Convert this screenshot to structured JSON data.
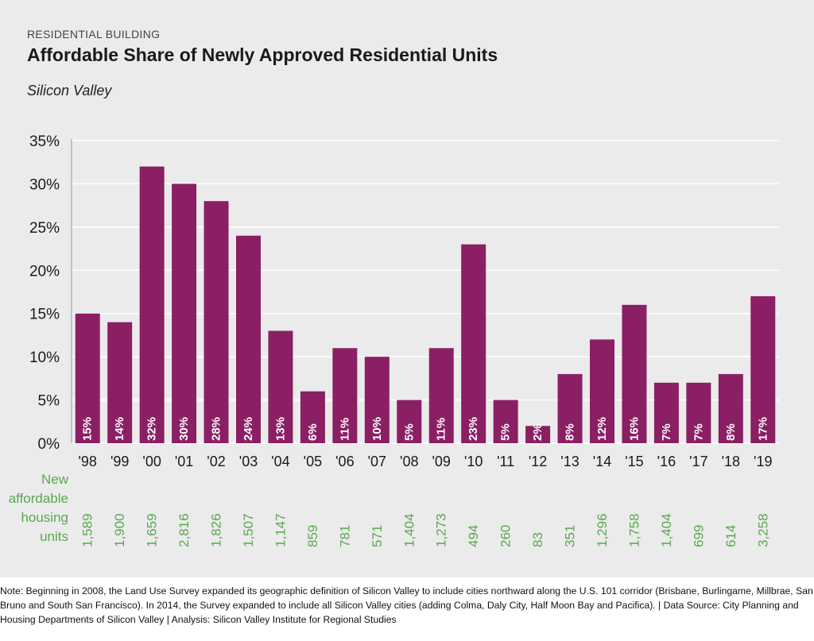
{
  "header": {
    "section": "RESIDENTIAL BUILDING",
    "title": "Affordable Share of Newly Approved Residential Units",
    "subtitle": "Silicon Valley"
  },
  "units_label": [
    "New",
    "affordable",
    "housing",
    "units"
  ],
  "footnote": "Note: Beginning in 2008, the Land Use Survey expanded its geographic definition of Silicon Valley to include cities northward along the U.S. 101 corridor (Brisbane, Burlingame, Millbrae, San Bruno and South San Francisco). In 2014, the Survey expanded to include all Silicon Valley cities (adding Colma, Daly City, Half Moon Bay and Pacifica). | Data Source: City Planning and Housing Departments of Silicon Valley | Analysis: Silicon Valley Institute for Regional Studies",
  "colors": {
    "bar": "#8b1f64",
    "grid": "#ffffff",
    "units_text": "#5aa84e",
    "background": "#ebebec"
  },
  "chart_data": {
    "type": "bar",
    "title": "Affordable Share of Newly Approved Residential Units",
    "subtitle": "Silicon Valley",
    "categories": [
      "'98",
      "'99",
      "'00",
      "'01",
      "'02",
      "'03",
      "'04",
      "'05",
      "'06",
      "'07",
      "'08",
      "'09",
      "'10",
      "'11",
      "'12",
      "'13",
      "'14",
      "'15",
      "'16",
      "'17",
      "'18",
      "'19"
    ],
    "values": [
      15,
      14,
      32,
      30,
      28,
      24,
      13,
      6,
      11,
      10,
      5,
      11,
      23,
      5,
      2,
      8,
      12,
      16,
      7,
      7,
      8,
      17
    ],
    "value_labels": [
      "15%",
      "14%",
      "32%",
      "30%",
      "28%",
      "24%",
      "13%",
      "6%",
      "11%",
      "10%",
      "5%",
      "11%",
      "23%",
      "5%",
      "2%",
      "8%",
      "12%",
      "16%",
      "7%",
      "7%",
      "8%",
      "17%"
    ],
    "units": [
      "1,589",
      "1,900",
      "1,659",
      "2,816",
      "1,826",
      "1,507",
      "1,147",
      "859",
      "781",
      "571",
      "1,404",
      "1,273",
      "494",
      "260",
      "83",
      "351",
      "1,296",
      "1,758",
      "1,404",
      "699",
      "614",
      "3,258"
    ],
    "ylim": [
      0,
      35
    ],
    "yticks": [
      0,
      5,
      10,
      15,
      20,
      25,
      30,
      35
    ],
    "ytick_labels": [
      "0%",
      "5%",
      "10%",
      "15%",
      "20%",
      "25%",
      "30%",
      "35%"
    ],
    "grid": true,
    "legend": "none",
    "xlabel": "",
    "ylabel": ""
  }
}
